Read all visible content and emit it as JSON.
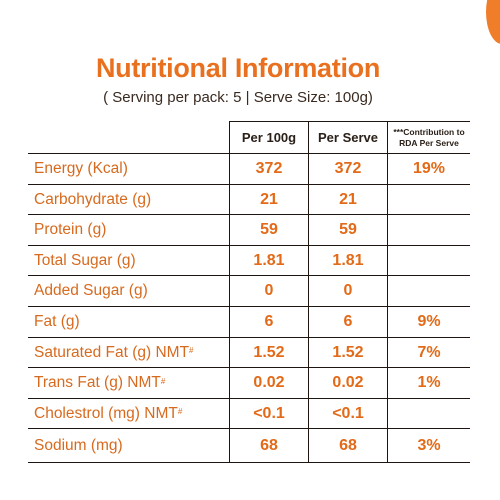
{
  "title": "Nutritional Information",
  "subtitle": "( Serving per pack: 5 | Serve Size: 100g)",
  "columns": {
    "per_100g": "Per 100g",
    "per_serve": "Per Serve",
    "rda_line1": "***Contribution to",
    "rda_line2": "RDA Per Serve"
  },
  "rows": [
    {
      "nutrient": "Energy (Kcal)",
      "nmt": "",
      "per_100g": "372",
      "per_serve": "372",
      "rda": "19%"
    },
    {
      "nutrient": "Carbohydrate (g)",
      "nmt": "",
      "per_100g": "21",
      "per_serve": "21",
      "rda": ""
    },
    {
      "nutrient": "Protein (g)",
      "nmt": "",
      "per_100g": "59",
      "per_serve": "59",
      "rda": ""
    },
    {
      "nutrient": "Total Sugar (g)",
      "nmt": "",
      "per_100g": "1.81",
      "per_serve": "1.81",
      "rda": ""
    },
    {
      "nutrient": "Added Sugar (g)",
      "nmt": "",
      "per_100g": "0",
      "per_serve": "0",
      "rda": ""
    },
    {
      "nutrient": "Fat (g)",
      "nmt": "",
      "per_100g": "6",
      "per_serve": "6",
      "rda": "9%"
    },
    {
      "nutrient": "Saturated Fat (g) NMT",
      "nmt": "#",
      "per_100g": "1.52",
      "per_serve": "1.52",
      "rda": "7%"
    },
    {
      "nutrient": "Trans Fat (g) NMT",
      "nmt": "#",
      "per_100g": "0.02",
      "per_serve": "0.02",
      "rda": "1%"
    },
    {
      "nutrient": "Cholestrol (mg) NMT",
      "nmt": "#",
      "per_100g": "<0.1",
      "per_serve": "<0.1",
      "rda": ""
    },
    {
      "nutrient": "Sodium (mg)",
      "nmt": "",
      "per_100g": "68",
      "per_serve": "68",
      "rda": "3%"
    }
  ],
  "colors": {
    "accent_orange": "#e9701f",
    "label_orange": "#d76a1e",
    "text_dark": "#2a2018",
    "rule": "#1e1410"
  }
}
